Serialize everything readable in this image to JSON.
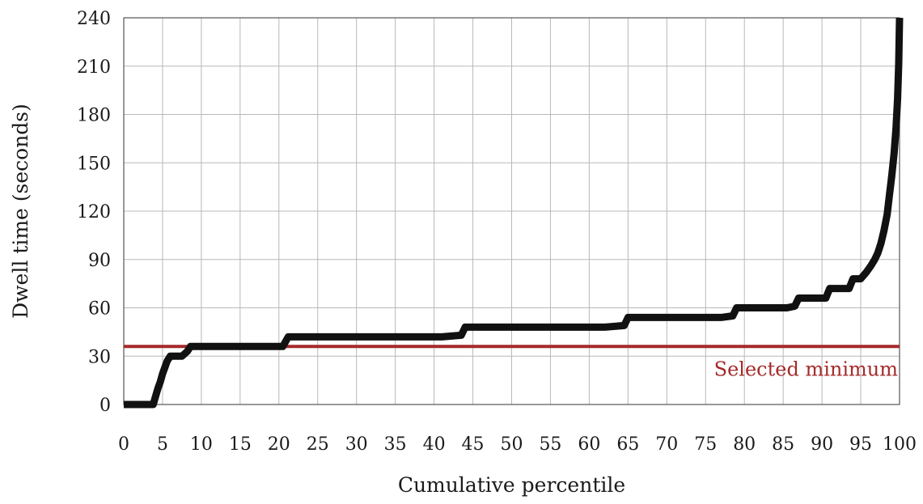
{
  "chart_data": {
    "type": "line",
    "xlabel": "Cumulative percentile",
    "ylabel": "Dwell time (seconds)",
    "xlim": [
      0,
      100
    ],
    "ylim": [
      0,
      240
    ],
    "x_ticks": [
      0,
      5,
      10,
      15,
      20,
      25,
      30,
      35,
      40,
      45,
      50,
      55,
      60,
      65,
      70,
      75,
      80,
      85,
      90,
      95,
      100
    ],
    "y_ticks": [
      0,
      30,
      60,
      90,
      120,
      150,
      180,
      210,
      240
    ],
    "grid": true,
    "series": [
      {
        "color": "#111111",
        "x": [
          0,
          3.8,
          4.1,
          4.4,
          4.7,
          5.0,
          5.3,
          5.6,
          6.0,
          6.5,
          7.5,
          8.2,
          8.6,
          13.5,
          14.5,
          20.5,
          21.2,
          40.5,
          41.0,
          43.5,
          44.0,
          62.0,
          64.5,
          65.0,
          77.0,
          78.5,
          79.0,
          85.5,
          86.5,
          87.0,
          90.5,
          91.0,
          93.5,
          94.0,
          95.0,
          95.7,
          96.3,
          96.8,
          97.2,
          97.6,
          98.0,
          98.4,
          98.7,
          99.0,
          99.3,
          99.55,
          99.75,
          99.9,
          100
        ],
        "y": [
          0,
          0,
          5,
          10,
          14,
          19,
          23,
          27,
          30,
          30,
          30,
          33,
          36,
          36,
          36,
          36,
          42,
          42,
          42,
          43,
          48,
          48,
          49,
          54,
          54,
          55,
          60,
          60,
          61,
          66,
          66,
          72,
          72,
          78,
          78,
          82,
          86,
          90,
          94,
          100,
          108,
          118,
          130,
          142,
          156,
          172,
          190,
          212,
          240
        ]
      }
    ],
    "reference_line": {
      "y": 36,
      "color": "#a52a2a",
      "label": "Selected minimum"
    }
  }
}
